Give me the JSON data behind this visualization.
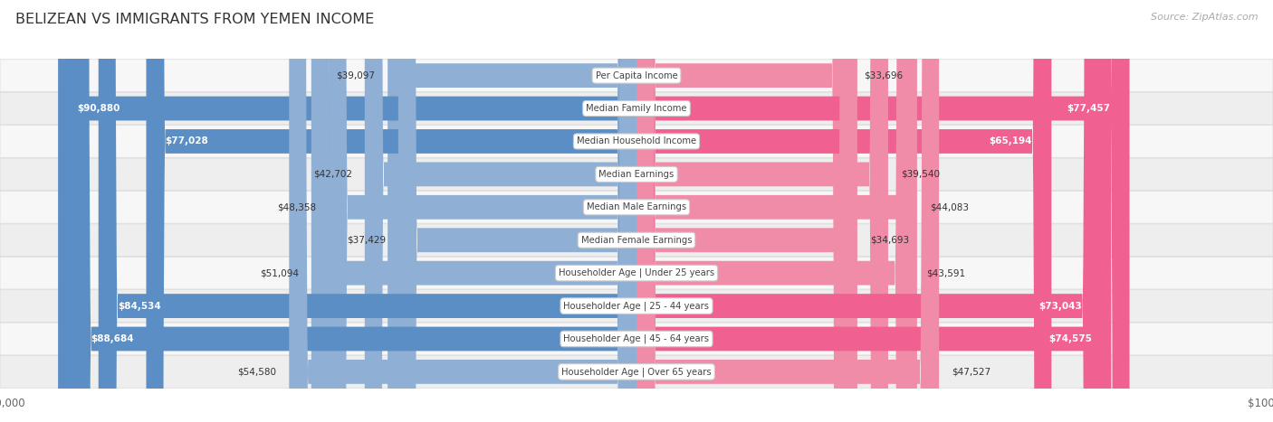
{
  "title": "BELIZEAN VS IMMIGRANTS FROM YEMEN INCOME",
  "source": "Source: ZipAtlas.com",
  "categories": [
    "Per Capita Income",
    "Median Family Income",
    "Median Household Income",
    "Median Earnings",
    "Median Male Earnings",
    "Median Female Earnings",
    "Householder Age | Under 25 years",
    "Householder Age | 25 - 44 years",
    "Householder Age | 45 - 64 years",
    "Householder Age | Over 65 years"
  ],
  "belizean_values": [
    39097,
    90880,
    77028,
    42702,
    48358,
    37429,
    51094,
    84534,
    88684,
    54580
  ],
  "yemen_values": [
    33696,
    77457,
    65194,
    39540,
    44083,
    34693,
    43591,
    73043,
    74575,
    47527
  ],
  "belizean_color": "#90afd4",
  "yemen_color": "#f08ca8",
  "belizean_color_strong": "#5b8ec4",
  "yemen_color_strong": "#f06090",
  "max_value": 100000,
  "bar_height": 0.72,
  "bg_color": "#ffffff",
  "row_bg_odd": "#f7f7f7",
  "row_bg_even": "#eeeeee",
  "row_border": "#d8d8d8",
  "title_color": "#333333",
  "source_color": "#aaaaaa",
  "label_dark": "#333333",
  "label_white": "#ffffff",
  "inside_threshold": 65000
}
